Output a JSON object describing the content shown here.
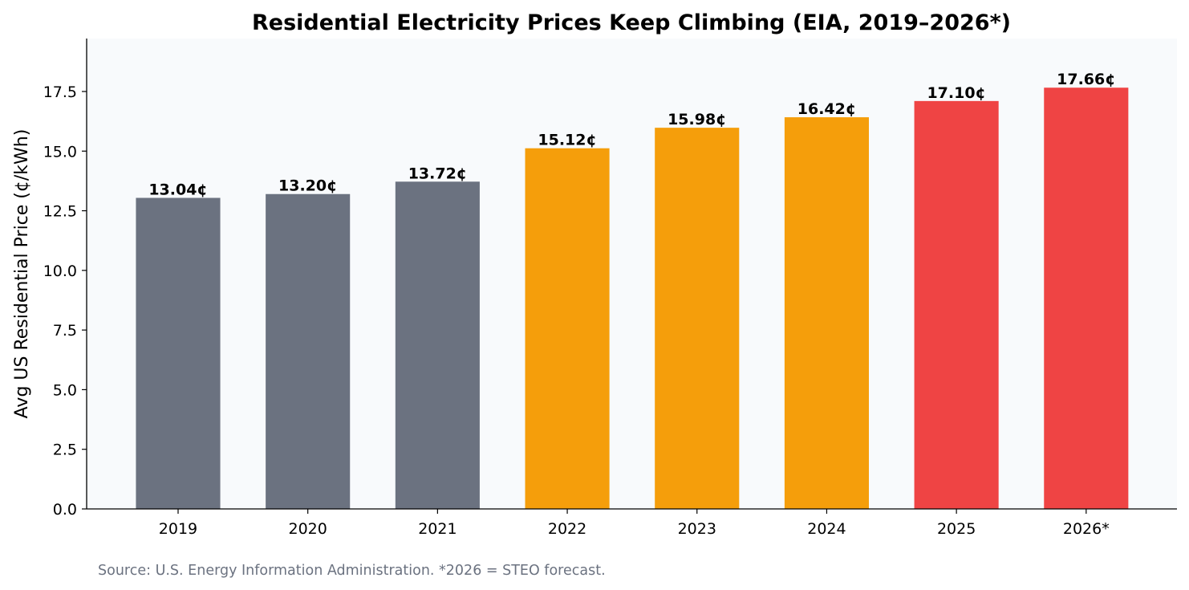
{
  "chart_data": {
    "type": "bar",
    "title": "Residential Electricity Prices Keep Climbing (EIA, 2019–2026*)",
    "xlabel": "",
    "ylabel": "Avg US Residential Price (¢/kWh)",
    "categories": [
      "2019",
      "2020",
      "2021",
      "2022",
      "2023",
      "2024",
      "2025",
      "2026*"
    ],
    "values": [
      13.04,
      13.2,
      13.72,
      15.12,
      15.98,
      16.42,
      17.1,
      17.66
    ],
    "data_labels": [
      "13.04¢",
      "13.20¢",
      "13.72¢",
      "15.12¢",
      "15.98¢",
      "16.42¢",
      "17.10¢",
      "17.66¢"
    ],
    "bar_colors": [
      "#6b7280",
      "#6b7280",
      "#6b7280",
      "#f59e0b",
      "#f59e0b",
      "#f59e0b",
      "#ef4444",
      "#ef4444"
    ],
    "ylim": [
      0,
      19.72
    ],
    "yticks": [
      0,
      2.5,
      5,
      7.5,
      10,
      12.5,
      15,
      17.5
    ],
    "ytick_labels": [
      "0.0",
      "2.5",
      "5.0",
      "7.5",
      "10.0",
      "12.5",
      "15.0",
      "17.5"
    ],
    "grid": false,
    "plot_background": "#f8fafc",
    "footnote": "Source: U.S. Energy Information Administration. *2026 = STEO forecast."
  }
}
